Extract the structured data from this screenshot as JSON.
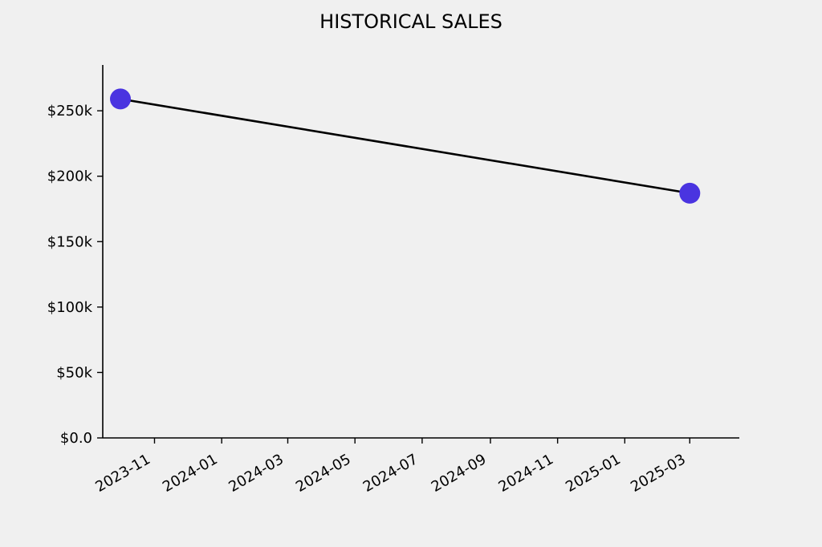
{
  "chart_data": {
    "type": "line",
    "title": "HISTORICAL SALES",
    "xlabel": "",
    "ylabel": "",
    "x_axis": {
      "kind": "date",
      "range": [
        "2023-09-15",
        "2025-04-15"
      ],
      "ticks": [
        "2023-11-01",
        "2024-01-01",
        "2024-03-01",
        "2024-05-01",
        "2024-07-01",
        "2024-09-01",
        "2024-11-01",
        "2025-01-01",
        "2025-03-01"
      ],
      "tick_labels": [
        "2023-11",
        "2024-01",
        "2024-03",
        "2024-05",
        "2024-07",
        "2024-09",
        "2024-11",
        "2025-01",
        "2025-03"
      ]
    },
    "y_axis": {
      "range": [
        0,
        285000
      ],
      "ticks": [
        0,
        50000,
        100000,
        150000,
        200000,
        250000
      ],
      "tick_labels": [
        "$0.0",
        "$50k",
        "$100k",
        "$150k",
        "$200k",
        "$250k"
      ]
    },
    "series": [
      {
        "x": [
          "2023-10-01",
          "2025-03-01"
        ],
        "y": [
          259000,
          187000
        ]
      }
    ],
    "grid": false,
    "colors": {
      "line": "#000000",
      "marker": "#4a34e0",
      "axes": "#000000",
      "background": "#f0f0f0"
    }
  }
}
